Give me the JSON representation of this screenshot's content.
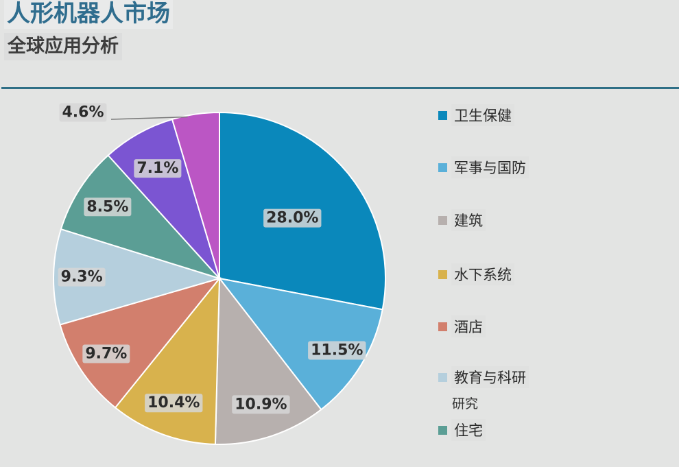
{
  "title": "人形机器人市场",
  "subtitle": "全球应用分析",
  "chart_data": {
    "type": "pie",
    "title": "人形机器人市场",
    "subtitle": "全球应用分析",
    "slices": [
      {
        "name": "卫生保健",
        "value": 28.0,
        "label": "28.0%",
        "color": "#0a88bb"
      },
      {
        "name": "军事与国防",
        "value": 11.5,
        "label": "11.5%",
        "color": "#5ab0d9"
      },
      {
        "name": "建筑",
        "value": 10.9,
        "label": "10.9%",
        "color": "#b7b0ae"
      },
      {
        "name": "水下系统",
        "value": 10.4,
        "label": "10.4%",
        "color": "#d8b24d"
      },
      {
        "name": "酒店",
        "value": 9.7,
        "label": "9.7%",
        "color": "#d27f6d"
      },
      {
        "name": "教育与科研",
        "value": 9.3,
        "label": "9.3%",
        "color": "#b5cfdd"
      },
      {
        "name": "住宅",
        "value": 8.5,
        "label": "8.5%",
        "color": "#5b9e95"
      },
      {
        "name": "",
        "value": 7.1,
        "label": "7.1%",
        "color": "#7b55d2"
      },
      {
        "name": "",
        "value": 4.6,
        "label": "4.6%",
        "color": "#bb56c4"
      }
    ],
    "legend_position": "right"
  },
  "legend": {
    "items": [
      {
        "name": "卫生保健",
        "color": "#0a88bb"
      },
      {
        "name": "军事与国防",
        "color": "#5ab0d9"
      },
      {
        "name": "建筑",
        "color": "#b7b0ae"
      },
      {
        "name": "水下系统",
        "color": "#d8b24d"
      },
      {
        "name": "酒店",
        "color": "#d27f6d"
      },
      {
        "name": "教育与科研",
        "color": "#b5cfdd"
      },
      {
        "name": "住宅",
        "color": "#5b9e95"
      }
    ],
    "extra_text": "研究"
  }
}
